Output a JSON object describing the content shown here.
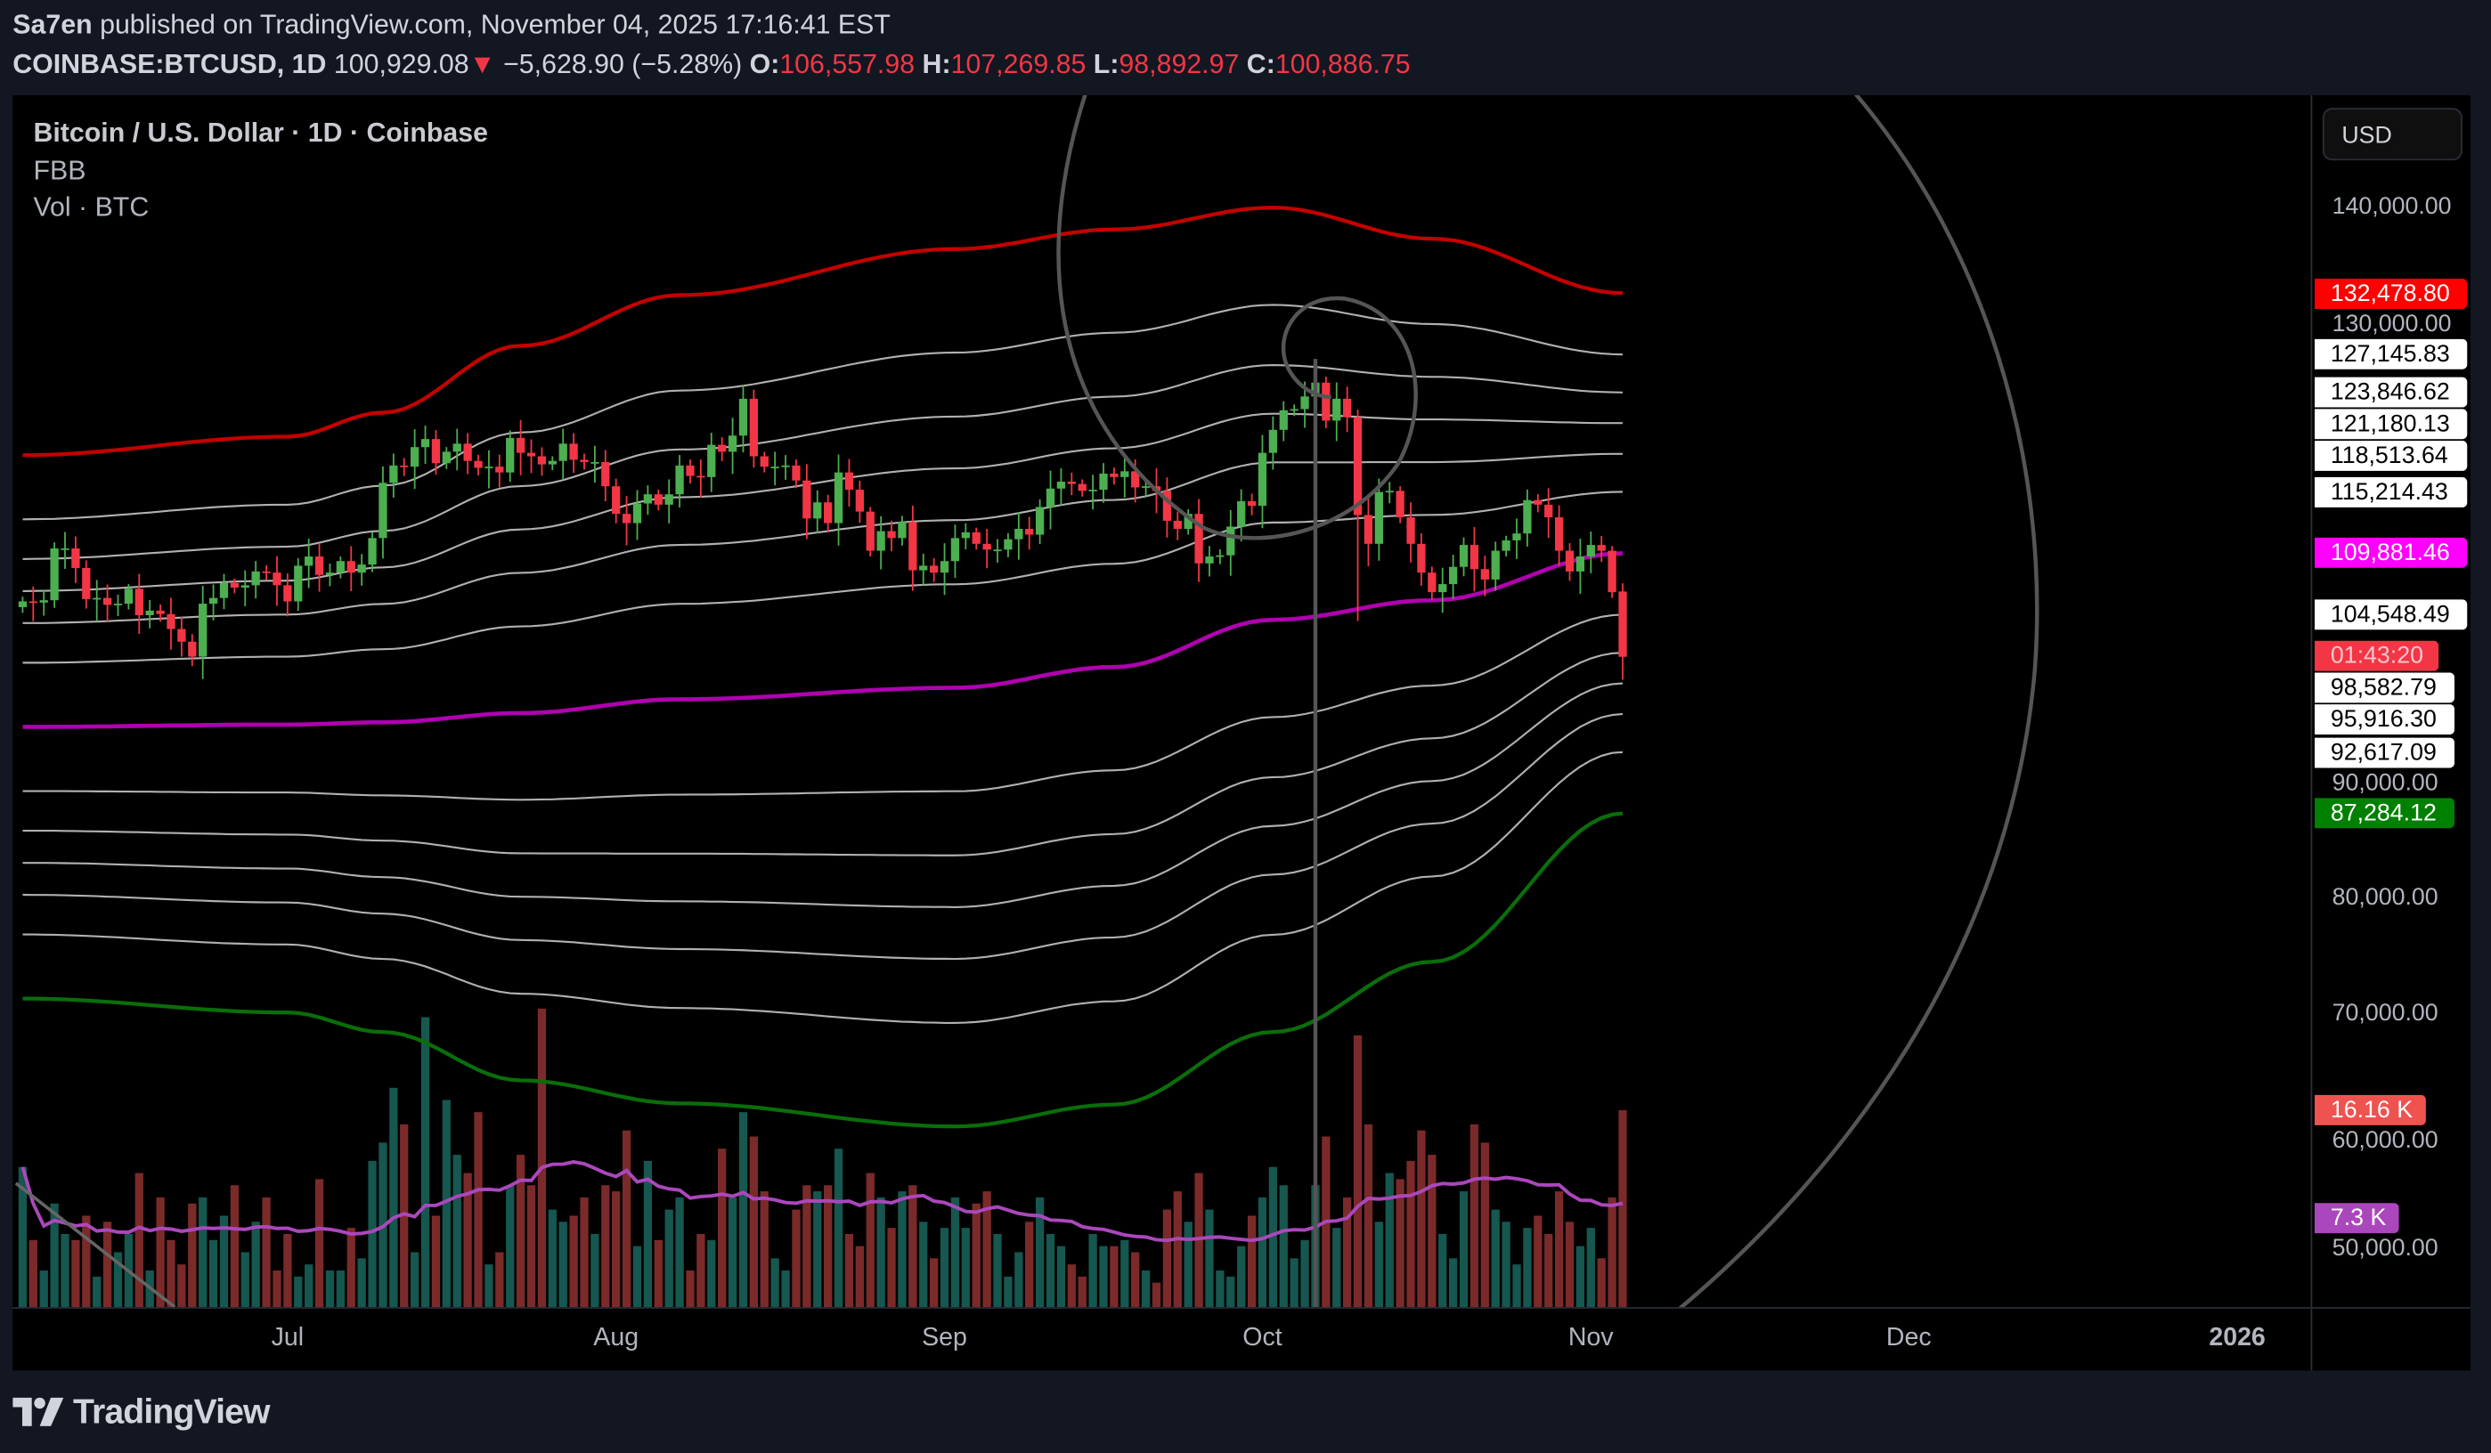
{
  "header": {
    "author": "Sa7en",
    "published_text": "published on TradingView.com, November 04, 2025 17:16:41 EST",
    "symbol": "COINBASE:BTCUSD, 1D",
    "last_price": "100,929.08",
    "change": "−5,628.90 (−5.28%)",
    "o_label": "O:",
    "open": "106,557.98",
    "h_label": "H:",
    "high": "107,269.85",
    "l_label": "L:",
    "low": "98,892.97",
    "c_label": "C:",
    "close": "100,886.75"
  },
  "legend": {
    "title": "Bitcoin / U.S. Dollar · 1D · Coinbase",
    "indicator": "FBB",
    "volume": "Vol · BTC"
  },
  "price_axis": {
    "currency_button": "USD",
    "ticks": [
      {
        "value": 140000,
        "label": "140,000.00"
      },
      {
        "value": 130000,
        "label": "130,000.00"
      },
      {
        "value": 90000,
        "label": "90,000.00"
      },
      {
        "value": 80000,
        "label": "80,000.00"
      },
      {
        "value": 70000,
        "label": "70,000.00"
      },
      {
        "value": 60000,
        "label": "60,000.00"
      },
      {
        "value": 50000,
        "label": "50,000.00"
      }
    ],
    "badges": [
      {
        "value": 132478.8,
        "label": "132,478.80",
        "bg": "#ff0000",
        "fg": "#ffffff"
      },
      {
        "value": 127145.83,
        "label": "127,145.83",
        "bg": "#ffffff",
        "fg": "#000000"
      },
      {
        "value": 123846.62,
        "label": "123,846.62",
        "bg": "#ffffff",
        "fg": "#000000"
      },
      {
        "value": 121180.13,
        "label": "121,180.13",
        "bg": "#ffffff",
        "fg": "#000000"
      },
      {
        "value": 118513.64,
        "label": "118,513.64",
        "bg": "#ffffff",
        "fg": "#000000"
      },
      {
        "value": 115214.43,
        "label": "115,214.43",
        "bg": "#ffffff",
        "fg": "#000000"
      },
      {
        "value": 109881.46,
        "label": "109,881.46",
        "bg": "#ff00ff",
        "fg": "#ffffff"
      },
      {
        "value": 104548.49,
        "label": "104,548.49",
        "bg": "#ffffff",
        "fg": "#000000"
      },
      {
        "value": 98582.79,
        "label": "98,582.79",
        "bg": "#ffffff",
        "fg": "#000000"
      },
      {
        "value": 95916.3,
        "label": "95,916.30",
        "bg": "#ffffff",
        "fg": "#000000"
      },
      {
        "value": 92617.09,
        "label": "92,617.09",
        "bg": "#ffffff",
        "fg": "#000000"
      },
      {
        "value": 87284.12,
        "label": "87,284.12",
        "bg": "#008000",
        "fg": "#ffffff"
      },
      {
        "value": 100929.08,
        "label": "01:43:20",
        "bg": "#f23645",
        "fg": "#f8c8cc"
      }
    ],
    "volume_badges": [
      {
        "value": 16.16,
        "label": "16.16 K",
        "bg": "#ef5350",
        "fg": "#ffffff"
      },
      {
        "value": 7.3,
        "label": "7.3 K",
        "bg": "#ab47bc",
        "fg": "#ffffff"
      }
    ]
  },
  "time_axis": [
    {
      "label": "Jul",
      "day": 25
    },
    {
      "label": "Aug",
      "day": 56
    },
    {
      "label": "Sep",
      "day": 87
    },
    {
      "label": "Oct",
      "day": 117
    },
    {
      "label": "Nov",
      "day": 148
    },
    {
      "label": "Dec",
      "day": 178
    },
    {
      "label": "2026",
      "day": 209
    }
  ],
  "footer": {
    "brand": "TradingView"
  },
  "colors": {
    "up": "#4caf50",
    "down": "#f23645",
    "vol_up": "#16574f",
    "vol_down": "#7b2a2a",
    "vol_ma": "#ab47bc",
    "basis": "#b000b0",
    "upper": "#c40000",
    "lower": "#0a6e0a",
    "band": "#cfcfcf",
    "drawing": "#555555"
  },
  "chart_data": {
    "type": "candlestick",
    "title": "Bitcoin / U.S. Dollar · 1D · Coinbase",
    "start_date": "2025-06-06",
    "units": "USD thousands",
    "ylim": [
      45,
      148
    ],
    "close": [
      105.7,
      105.6,
      105.8,
      110.3,
      110.3,
      108.6,
      105.9,
      106.0,
      105.4,
      105.5,
      106.8,
      104.5,
      104.9,
      104.6,
      103.3,
      102.2,
      100.9,
      105.5,
      106.0,
      107.3,
      106.9,
      107.1,
      108.3,
      108.2,
      107.1,
      105.7,
      108.8,
      109.6,
      108.0,
      108.2,
      109.2,
      108.2,
      108.9,
      111.2,
      116.0,
      117.5,
      117.4,
      119.1,
      119.8,
      117.7,
      118.7,
      119.4,
      117.9,
      117.3,
      117.4,
      116.9,
      119.9,
      118.6,
      118.3,
      117.6,
      117.9,
      119.4,
      118.0,
      117.8,
      117.8,
      115.7,
      113.3,
      112.5,
      114.2,
      115.0,
      114.1,
      115.0,
      117.5,
      116.6,
      116.5,
      119.3,
      118.7,
      120.1,
      123.3,
      118.3,
      117.4,
      117.4,
      117.5,
      116.2,
      112.9,
      114.3,
      112.5,
      116.9,
      115.4,
      113.5,
      110.1,
      111.8,
      111.2,
      112.6,
      108.4,
      108.8,
      108.2,
      109.2,
      111.2,
      111.7,
      110.7,
      110.2,
      110.2,
      111.1,
      112.0,
      111.5,
      113.9,
      115.5,
      116.1,
      115.9,
      115.3,
      115.4,
      116.8,
      116.5,
      117.0,
      115.6,
      115.7,
      115.3,
      112.7,
      112.0,
      113.3,
      109.0,
      109.6,
      109.7,
      112.2,
      114.4,
      114.0,
      118.6,
      120.6,
      122.3,
      122.4,
      123.5,
      124.7,
      121.4,
      123.3,
      121.7,
      113.2,
      110.7,
      115.2,
      115.3,
      113.0,
      110.7,
      108.2,
      106.5,
      107.2,
      108.7,
      110.6,
      108.5,
      107.6,
      110.1,
      111.0,
      111.6,
      114.5,
      114.1,
      113.0,
      110.1,
      108.3,
      109.6,
      110.6,
      110.1,
      106.5,
      100.9
    ],
    "last_bar": {
      "open": 106.558,
      "high": 107.27,
      "low": 98.893,
      "close": 100.887
    },
    "low_overrides": [
      {
        "day": 126,
        "low": 104.0
      }
    ],
    "volume_k": [
      11.5,
      5.5,
      3,
      8.5,
      6,
      5.5,
      7.5,
      2.5,
      7,
      4.5,
      6,
      11,
      3,
      9,
      5.5,
      3.5,
      8.5,
      9,
      5.5,
      7.5,
      10,
      4.5,
      7,
      9,
      3,
      6,
      2.5,
      3.5,
      10.5,
      3,
      3,
      6.5,
      4,
      12,
      13.5,
      18,
      15,
      4.5,
      23.8,
      7.5,
      17,
      12.5,
      11,
      16,
      3.5,
      4.5,
      10,
      12.5,
      10,
      24.5,
      8,
      7,
      7.5,
      9,
      6,
      10,
      9.5,
      14.5,
      5,
      12,
      5.5,
      8,
      9,
      3,
      6,
      5.5,
      13,
      9,
      16,
      14,
      9.5,
      4,
      3,
      8,
      10,
      9.5,
      10,
      13,
      6,
      5,
      11,
      9,
      6.5,
      9.5,
      10,
      7,
      4,
      6.5,
      9,
      6.5,
      8.5,
      9.5,
      6,
      2.5,
      4.5,
      7,
      9,
      6,
      5,
      3.5,
      2.5,
      6,
      5,
      5,
      5.5,
      4.5,
      3,
      2,
      8,
      9.5,
      7,
      11,
      8,
      3,
      2.5,
      5,
      7.5,
      9,
      11.5,
      10,
      4,
      5.5,
      10,
      14,
      6.5,
      9,
      22.3,
      15,
      7,
      11,
      10.5,
      12,
      14.5,
      12.5,
      6,
      4,
      9.5,
      15,
      13.5,
      8,
      7,
      3.5,
      6.5,
      7.5,
      6,
      9.5,
      7,
      5,
      6.5,
      4,
      9,
      16.16
    ],
    "fbb": {
      "levels": [
        1,
        0.764,
        0.618,
        0.5,
        0.382,
        0.236
      ],
      "basis_width_by_day": [
        [
          0,
          94.8,
          23.6
        ],
        [
          25,
          95.0,
          25.0
        ],
        [
          34,
          95.2,
          26.9
        ],
        [
          47,
          96.0,
          31.9
        ],
        [
          62,
          97.2,
          35.1
        ],
        [
          88,
          98.2,
          38.1
        ],
        [
          103,
          100.0,
          38.0
        ],
        [
          118,
          104.1,
          35.8
        ],
        [
          133,
          105.8,
          31.4
        ],
        [
          151,
          109.88,
          22.6
        ]
      ]
    }
  }
}
